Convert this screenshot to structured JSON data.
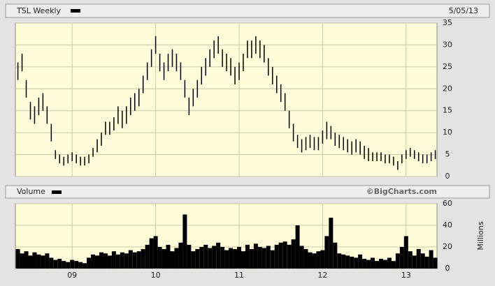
{
  "chart_data": [
    {
      "type": "range",
      "title": "TSL Weekly",
      "date": "5/05/13",
      "color": "#000000",
      "x": [
        2008.35,
        2008.4,
        2008.45,
        2008.5,
        2008.55,
        2008.6,
        2008.65,
        2008.7,
        2008.75,
        2008.8,
        2008.85,
        2008.9,
        2008.95,
        2009.0,
        2009.05,
        2009.1,
        2009.15,
        2009.2,
        2009.25,
        2009.3,
        2009.35,
        2009.4,
        2009.45,
        2009.5,
        2009.55,
        2009.6,
        2009.65,
        2009.7,
        2009.75,
        2009.8,
        2009.85,
        2009.9,
        2009.95,
        2010.0,
        2010.05,
        2010.1,
        2010.15,
        2010.2,
        2010.25,
        2010.3,
        2010.35,
        2010.4,
        2010.45,
        2010.5,
        2010.55,
        2010.6,
        2010.65,
        2010.7,
        2010.75,
        2010.8,
        2010.85,
        2010.9,
        2010.95,
        2011.0,
        2011.05,
        2011.1,
        2011.15,
        2011.2,
        2011.25,
        2011.3,
        2011.35,
        2011.4,
        2011.45,
        2011.5,
        2011.55,
        2011.6,
        2011.65,
        2011.7,
        2011.75,
        2011.8,
        2011.85,
        2011.9,
        2011.95,
        2012.0,
        2012.05,
        2012.1,
        2012.15,
        2012.2,
        2012.25,
        2012.3,
        2012.35,
        2012.4,
        2012.45,
        2012.5,
        2012.55,
        2012.6,
        2012.65,
        2012.7,
        2012.75,
        2012.8,
        2012.85,
        2012.9,
        2012.95,
        2013.0,
        2013.05,
        2013.1,
        2013.15,
        2013.2,
        2013.25,
        2013.3,
        2013.35
      ],
      "high": [
        26,
        28,
        22,
        17,
        16,
        18,
        19,
        16,
        12,
        6,
        5,
        4.5,
        5,
        5.5,
        5,
        4.5,
        4.5,
        5,
        6.5,
        8.5,
        10,
        12.5,
        12.5,
        13.5,
        16,
        15,
        16,
        18,
        19,
        20,
        23,
        26,
        29,
        32,
        28,
        26,
        28,
        29,
        28,
        26,
        22,
        18,
        20,
        22,
        25,
        27,
        29,
        31,
        32,
        29,
        28,
        27,
        25,
        26,
        28,
        31,
        31,
        32,
        31,
        30,
        27,
        25,
        23,
        21,
        19,
        15,
        12,
        9.5,
        8.5,
        9,
        9.5,
        9,
        9,
        10.5,
        12.5,
        11.5,
        10,
        9.5,
        9,
        8.5,
        8,
        8.5,
        8,
        7,
        6.5,
        5.5,
        5.5,
        5.5,
        5,
        5,
        4.5,
        3.5,
        5,
        6,
        6.5,
        6,
        5.5,
        5,
        5,
        5.5,
        6
      ],
      "low": [
        22,
        24,
        18,
        13,
        12,
        14,
        15,
        12,
        8,
        4,
        3,
        2.5,
        3,
        3.5,
        3,
        2.5,
        2.5,
        3,
        4.5,
        5.5,
        7,
        9.5,
        9.5,
        10.5,
        12,
        11,
        12,
        14,
        15,
        16,
        19,
        22,
        25,
        28,
        24,
        22,
        24,
        25,
        24,
        22,
        18,
        14,
        16,
        18,
        21,
        23,
        25,
        27,
        28,
        25,
        24,
        23,
        21,
        22,
        24,
        27,
        27,
        28,
        27,
        26,
        23,
        21,
        19,
        17,
        15,
        11,
        8,
        6.5,
        5.5,
        6,
        6.5,
        6,
        6,
        7.5,
        8.5,
        8.5,
        7,
        6.5,
        6,
        5.5,
        5,
        5.5,
        5,
        4,
        3.5,
        3.5,
        3.5,
        3.5,
        3,
        3,
        2.5,
        1.5,
        3,
        4,
        4.5,
        4,
        3.5,
        3,
        3,
        3.5,
        4
      ],
      "ylim": [
        0,
        35
      ],
      "yticks": [
        0,
        5,
        10,
        15,
        20,
        25,
        30,
        35
      ],
      "grid": true
    },
    {
      "type": "bar",
      "title": "Volume",
      "credit": "©BigCharts.com",
      "y_label": "Millions",
      "color": "#000000",
      "x": [
        2008.35,
        2008.4,
        2008.45,
        2008.5,
        2008.55,
        2008.6,
        2008.65,
        2008.7,
        2008.75,
        2008.8,
        2008.85,
        2008.9,
        2008.95,
        2009.0,
        2009.05,
        2009.1,
        2009.15,
        2009.2,
        2009.25,
        2009.3,
        2009.35,
        2009.4,
        2009.45,
        2009.5,
        2009.55,
        2009.6,
        2009.65,
        2009.7,
        2009.75,
        2009.8,
        2009.85,
        2009.9,
        2009.95,
        2010.0,
        2010.05,
        2010.1,
        2010.15,
        2010.2,
        2010.25,
        2010.3,
        2010.35,
        2010.4,
        2010.45,
        2010.5,
        2010.55,
        2010.6,
        2010.65,
        2010.7,
        2010.75,
        2010.8,
        2010.85,
        2010.9,
        2010.95,
        2011.0,
        2011.05,
        2011.1,
        2011.15,
        2011.2,
        2011.25,
        2011.3,
        2011.35,
        2011.4,
        2011.45,
        2011.5,
        2011.55,
        2011.6,
        2011.65,
        2011.7,
        2011.75,
        2011.8,
        2011.85,
        2011.9,
        2011.95,
        2012.0,
        2012.05,
        2012.1,
        2012.15,
        2012.2,
        2012.25,
        2012.3,
        2012.35,
        2012.4,
        2012.45,
        2012.5,
        2012.55,
        2012.6,
        2012.65,
        2012.7,
        2012.75,
        2012.8,
        2012.85,
        2012.9,
        2012.95,
        2013.0,
        2013.05,
        2013.1,
        2013.15,
        2013.2,
        2013.25,
        2013.3,
        2013.35
      ],
      "values": [
        18,
        14,
        16,
        12,
        15,
        13,
        12,
        14,
        10,
        8,
        9,
        7,
        6,
        8,
        7,
        6,
        5,
        10,
        13,
        12,
        15,
        14,
        12,
        16,
        13,
        15,
        14,
        17,
        15,
        16,
        18,
        22,
        28,
        30,
        20,
        18,
        22,
        16,
        19,
        24,
        50,
        22,
        16,
        18,
        20,
        22,
        19,
        21,
        24,
        20,
        17,
        19,
        18,
        20,
        16,
        22,
        18,
        23,
        20,
        19,
        21,
        17,
        22,
        24,
        25,
        22,
        27,
        40,
        21,
        18,
        15,
        14,
        16,
        17,
        30,
        47,
        24,
        14,
        13,
        12,
        11,
        10,
        13,
        9,
        8,
        10,
        7,
        9,
        8,
        10,
        7,
        14,
        20,
        30,
        16,
        12,
        18,
        14,
        11,
        17,
        10
      ],
      "ylim": [
        0,
        60
      ],
      "yticks": [
        0,
        20,
        40,
        60
      ],
      "xlim": [
        2008.32,
        2013.37
      ],
      "xticks": [
        {
          "value": 2009,
          "label": "09"
        },
        {
          "value": 2010,
          "label": "10"
        },
        {
          "value": 2011,
          "label": "11"
        },
        {
          "value": 2012,
          "label": "12"
        },
        {
          "value": 2013,
          "label": "13"
        }
      ]
    }
  ]
}
